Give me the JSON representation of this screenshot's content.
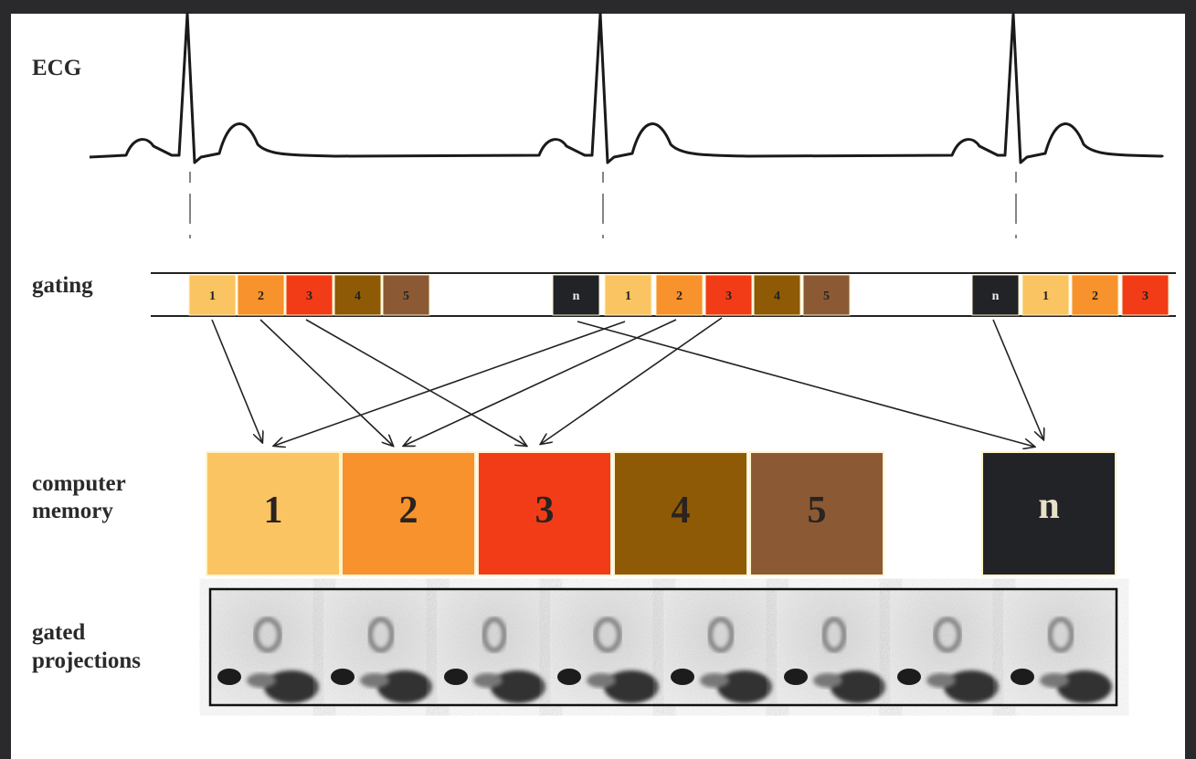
{
  "labels": {
    "ecg": "ECG",
    "gating": "gating",
    "memory": [
      "computer",
      "memory"
    ],
    "projections": [
      "gated",
      "projections"
    ]
  },
  "gating": [
    "1",
    "2",
    "3",
    "4",
    "5",
    "n",
    "1",
    "2",
    "3",
    "4",
    "5",
    "n",
    "1",
    "2",
    "3"
  ],
  "memory": [
    "1",
    "2",
    "3",
    "4",
    "5",
    "n"
  ]
}
